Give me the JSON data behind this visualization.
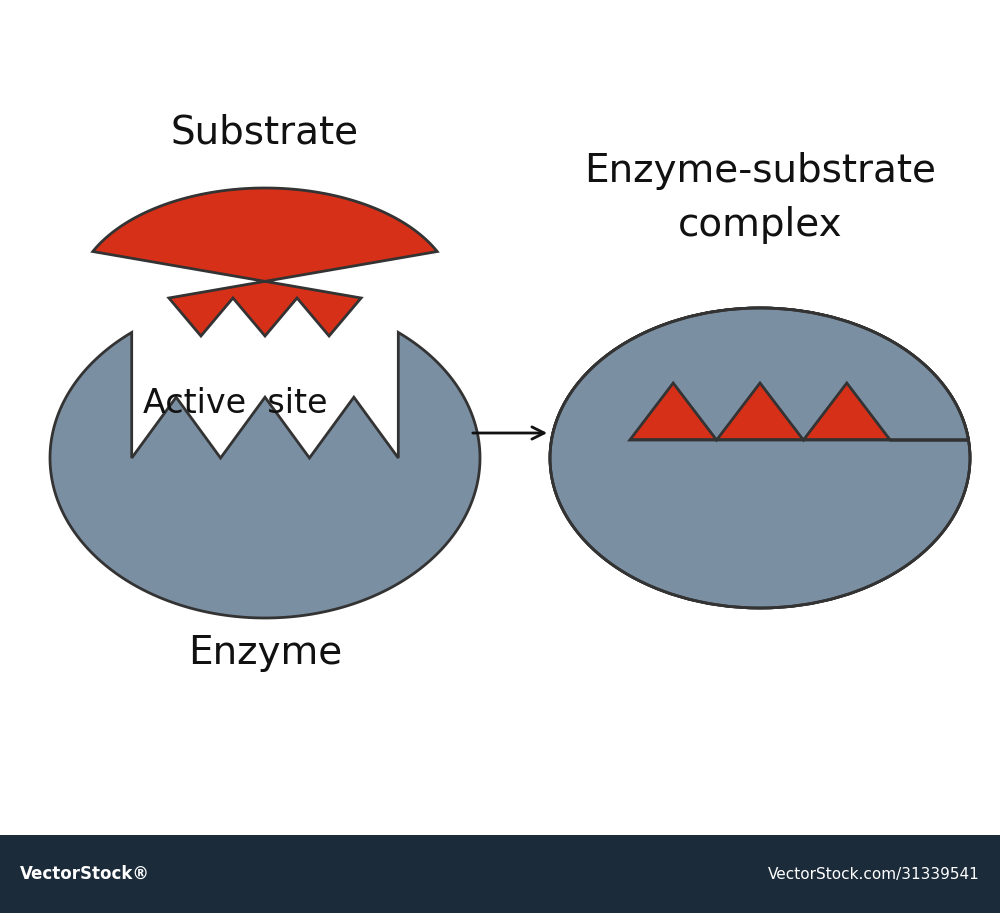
{
  "bg_color": "#ffffff",
  "bottom_bar_color": "#1c2b3a",
  "enzyme_color": "#7b8fa3",
  "enzyme_edge_color": "#333333",
  "substrate_color": "#d63018",
  "substrate_edge_color": "#333333",
  "text_color": "#111111",
  "substrate_label": "Substrate",
  "active_site_label": "Active  site",
  "enzyme_label": "Enzyme",
  "complex_label": "Enzyme-substrate\ncomplex",
  "font_size_main": 28,
  "font_size_active": 24,
  "arrow_color": "#111111",
  "vectorstock_text": "VectorStock®",
  "vectorstock_url": "VectorStock.com/31339541"
}
